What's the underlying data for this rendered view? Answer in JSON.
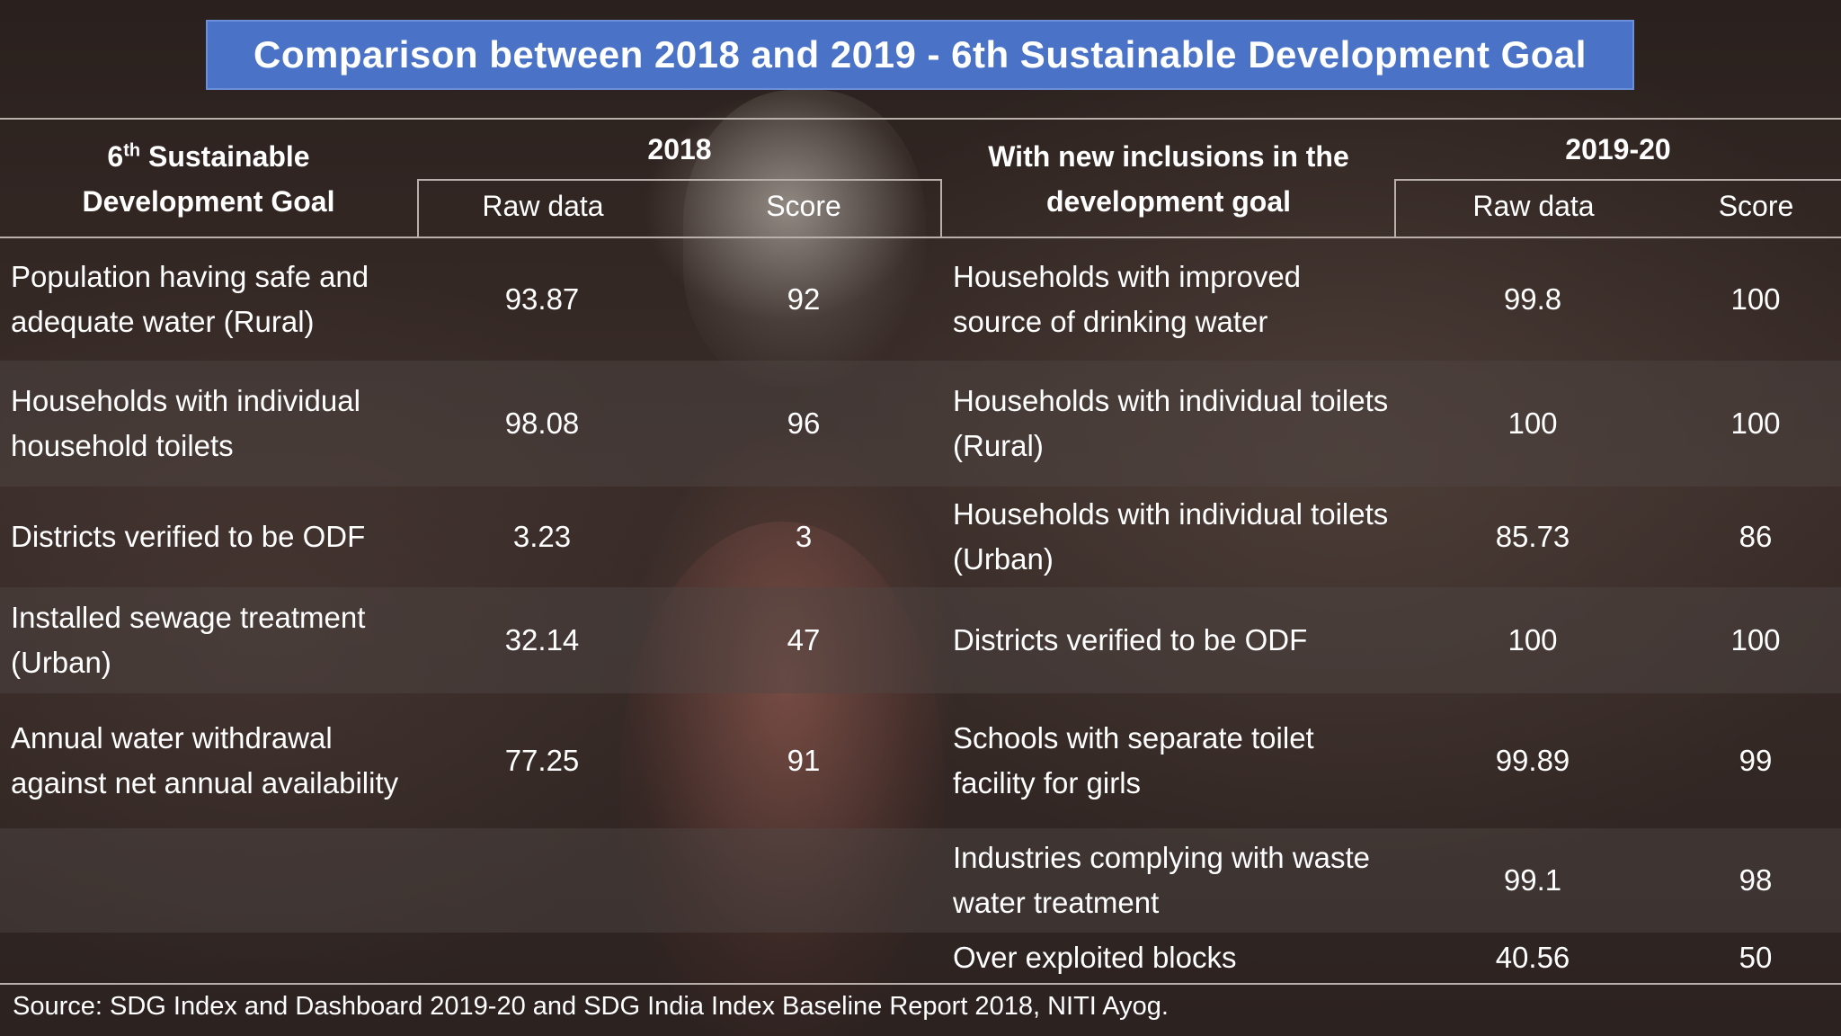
{
  "title": "Comparison between 2018 and 2019 - 6th Sustainable Development Goal",
  "header": {
    "goal_col_main": "6",
    "goal_col_sup": "th",
    "goal_col_rest_line1": " Sustainable",
    "goal_col_line2": "Development Goal",
    "year_2018": "2018",
    "inclusions_line1": "With new inclusions in the",
    "inclusions_line2": "development goal",
    "year_2019": "2019-20",
    "raw_data": "Raw data",
    "score": "Score"
  },
  "rows": [
    {
      "left": "Population having safe and adequate water (Rural)",
      "raw2018": "93.87",
      "score2018": "92",
      "right": "Households with improved source of drinking water",
      "raw2019": "99.8",
      "score2019": "100"
    },
    {
      "left": "Households with individual household toilets",
      "raw2018": "98.08",
      "score2018": "96",
      "right": "Households with individual toilets (Rural)",
      "raw2019": "100",
      "score2019": "100"
    },
    {
      "left": "Districts verified to be ODF",
      "raw2018": "3.23",
      "score2018": "3",
      "right": "Households with individual toilets (Urban)",
      "raw2019": "85.73",
      "score2019": "86"
    },
    {
      "left": "Installed sewage treatment (Urban)",
      "raw2018": "32.14",
      "score2018": "47",
      "right": "Districts verified to be ODF",
      "raw2019": "100",
      "score2019": "100"
    },
    {
      "left": "Annual water withdrawal against net annual availability",
      "raw2018": "77.25",
      "score2018": "91",
      "right": "Schools with separate toilet facility for girls",
      "raw2019": "99.89",
      "score2019": "99"
    },
    {
      "left": "",
      "raw2018": "",
      "score2018": "",
      "right": "Industries complying with waste water treatment",
      "raw2019": "99.1",
      "score2019": "98"
    },
    {
      "left": "",
      "raw2018": "",
      "score2018": "",
      "right": "Over exploited blocks",
      "raw2019": "40.56",
      "score2019": "50"
    }
  ],
  "source": "Source: SDG Index and Dashboard 2019-20 and SDG India Index Baseline Report 2018, NITI Ayog."
}
